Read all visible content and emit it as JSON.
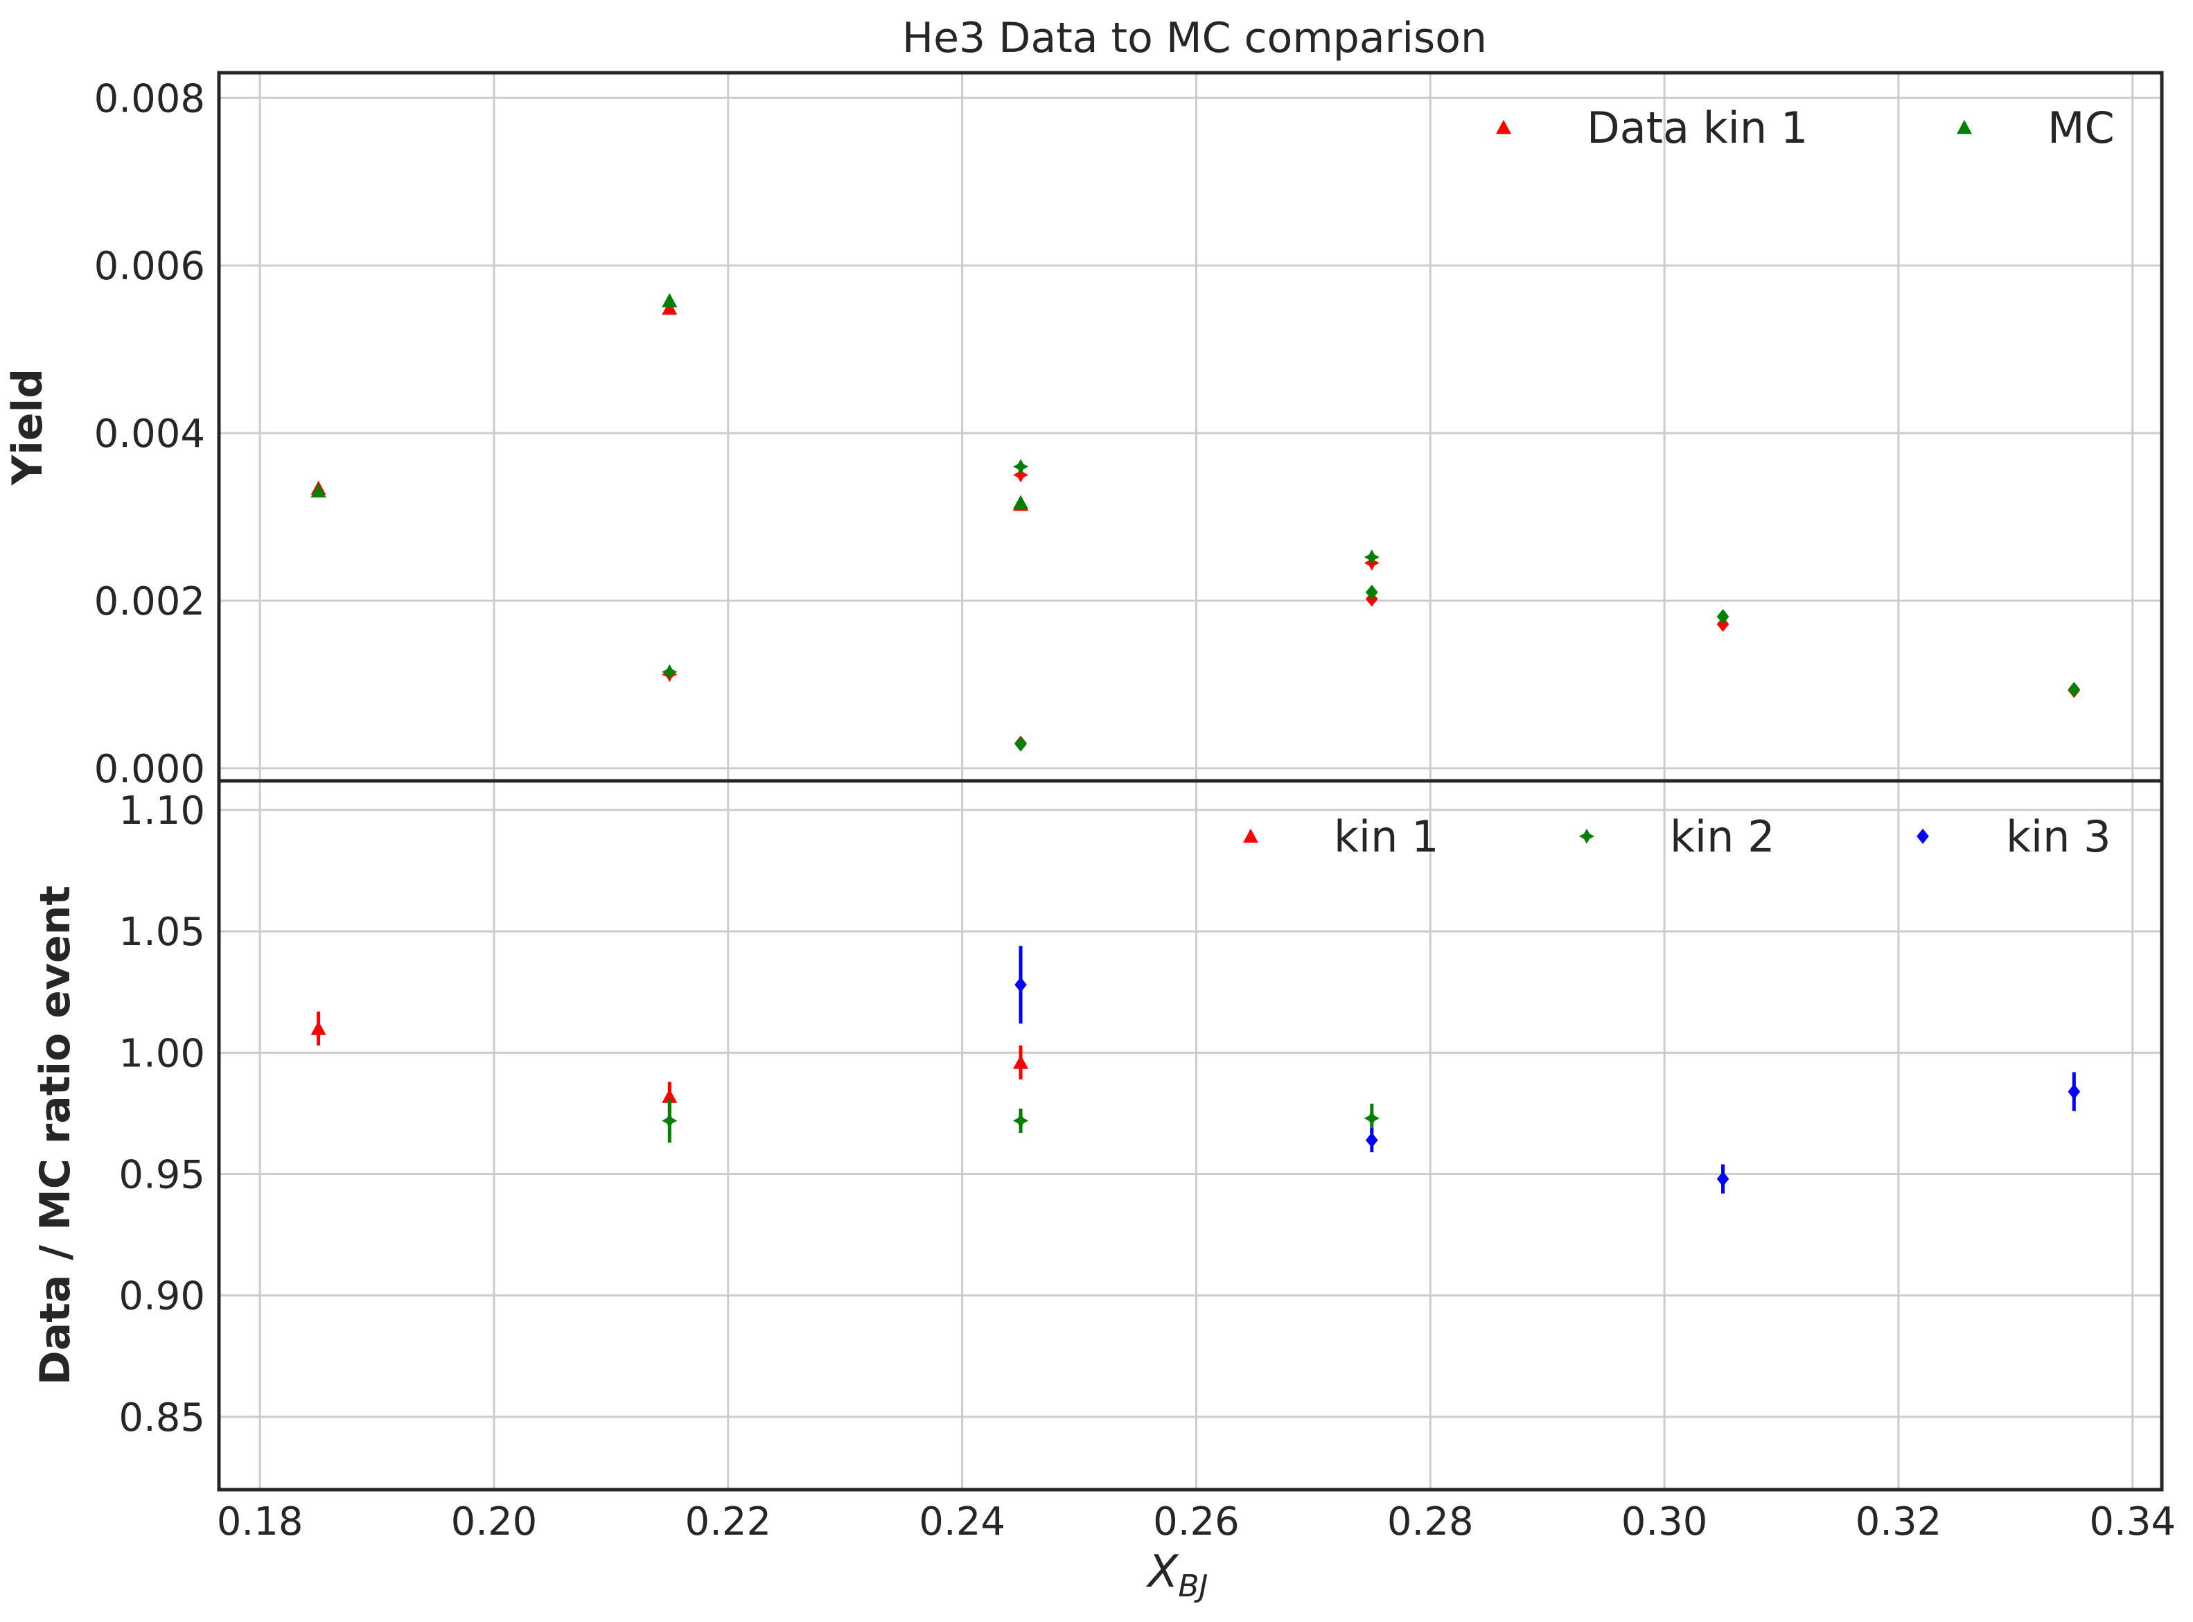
{
  "chart_data": {
    "type": "scatter",
    "title": "He3 Data to MC comparison",
    "xlabel_main": "X",
    "xlabel_sub": "BJ",
    "x_ticks": [
      "0.18",
      "0.20",
      "0.22",
      "0.24",
      "0.26",
      "0.28",
      "0.30",
      "0.32",
      "0.34"
    ],
    "xlim": [
      0.1765,
      0.3425
    ],
    "grid": true,
    "colors": {
      "kin1": "#ff0000",
      "kin2": "#008000",
      "kin3": "#0000ff"
    },
    "panels": [
      {
        "ylabel": "Yield",
        "ylim": [
          -0.00015,
          0.0083
        ],
        "y_ticks": [
          "0.000",
          "0.002",
          "0.004",
          "0.006",
          "0.008"
        ],
        "legend": {
          "placement": "top-right",
          "entries": [
            {
              "label": "Data kin 1",
              "color": "#ff0000",
              "marker": "triangle"
            },
            {
              "label": "MC",
              "color": "#008000",
              "marker": "triangle"
            }
          ]
        },
        "series": [
          {
            "kind": "data",
            "kin": 1,
            "color": "#ff0000",
            "marker": "triangle",
            "points": [
              [
                0.185,
                0.00334
              ],
              [
                0.215,
                0.00549
              ],
              [
                0.245,
                0.00315
              ]
            ]
          },
          {
            "kind": "mc",
            "kin": 1,
            "color": "#008000",
            "marker": "triangle",
            "points": [
              [
                0.185,
                0.00331
              ],
              [
                0.215,
                0.00558
              ],
              [
                0.245,
                0.00317
              ]
            ]
          },
          {
            "kind": "data",
            "kin": 2,
            "color": "#ff0000",
            "marker": "star",
            "points": [
              [
                0.215,
                0.00112
              ],
              [
                0.245,
                0.0035
              ],
              [
                0.275,
                0.00245
              ]
            ]
          },
          {
            "kind": "mc",
            "kin": 2,
            "color": "#008000",
            "marker": "star",
            "points": [
              [
                0.215,
                0.00115
              ],
              [
                0.245,
                0.0036
              ],
              [
                0.275,
                0.00252
              ]
            ]
          },
          {
            "kind": "data",
            "kin": 3,
            "color": "#ff0000",
            "marker": "diamond",
            "points": [
              [
                0.245,
                0.0003
              ],
              [
                0.275,
                0.00202
              ],
              [
                0.305,
                0.00172
              ],
              [
                0.335,
                0.00093
              ]
            ]
          },
          {
            "kind": "mc",
            "kin": 3,
            "color": "#008000",
            "marker": "diamond",
            "points": [
              [
                0.245,
                0.00029
              ],
              [
                0.275,
                0.0021
              ],
              [
                0.305,
                0.00181
              ],
              [
                0.335,
                0.00094
              ]
            ]
          }
        ]
      },
      {
        "ylabel": "Data / MC ratio event",
        "ylim": [
          0.82,
          1.112
        ],
        "y_ticks": [
          "0.85",
          "0.90",
          "0.95",
          "1.00",
          "1.05",
          "1.10"
        ],
        "legend": {
          "placement": "top-right",
          "entries": [
            {
              "label": "kin 1",
              "color": "#ff0000",
              "marker": "triangle"
            },
            {
              "label": "kin 2",
              "color": "#008000",
              "marker": "star"
            },
            {
              "label": "kin 3",
              "color": "#0000ff",
              "marker": "diamond"
            }
          ]
        },
        "series": [
          {
            "name": "kin 1",
            "color": "#ff0000",
            "marker": "triangle",
            "points": [
              [
                0.185,
                1.01,
                0.007
              ],
              [
                0.215,
                0.982,
                0.006
              ],
              [
                0.245,
                0.996,
                0.007
              ]
            ]
          },
          {
            "name": "kin 2",
            "color": "#008000",
            "marker": "star",
            "points": [
              [
                0.215,
                0.972,
                0.009
              ],
              [
                0.245,
                0.972,
                0.005
              ],
              [
                0.275,
                0.973,
                0.006
              ]
            ]
          },
          {
            "name": "kin 3",
            "color": "#0000ff",
            "marker": "diamond",
            "points": [
              [
                0.245,
                1.028,
                0.016
              ],
              [
                0.275,
                0.964,
                0.005
              ],
              [
                0.305,
                0.948,
                0.006
              ],
              [
                0.335,
                0.984,
                0.008
              ]
            ]
          }
        ]
      }
    ]
  }
}
